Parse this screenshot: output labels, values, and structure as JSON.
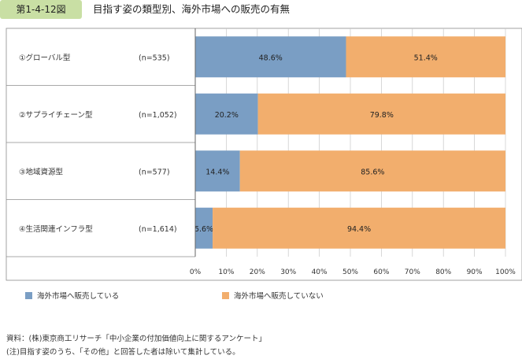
{
  "header": {
    "figure_number": "第1-4-12図",
    "title": "目指す姿の類型別、海外市場への販売の有無"
  },
  "colors": {
    "sell": "#7a9ec4",
    "not_sell": "#f2ae6d",
    "grid": "#c7c7c7",
    "border": "#8c8c8c"
  },
  "chart_data": {
    "type": "bar",
    "orientation": "horizontal",
    "stacked": true,
    "percent": true,
    "categories": [
      "①グローバル型",
      "②サプライチェーン型",
      "③地域資源型",
      "④生活関連インフラ型"
    ],
    "sample_sizes": [
      "(n=535)",
      "(n=1,052)",
      "(n=577)",
      "(n=1,614)"
    ],
    "series": [
      {
        "name": "海外市場へ販売している",
        "values": [
          48.6,
          20.2,
          14.4,
          5.6
        ],
        "labels": [
          "48.6%",
          "20.2%",
          "14.4%",
          "5.6%"
        ],
        "color": "#7a9ec4"
      },
      {
        "name": "海外市場へ販売していない",
        "values": [
          51.4,
          79.8,
          85.6,
          94.4
        ],
        "labels": [
          "51.4%",
          "79.8%",
          "85.6%",
          "94.4%"
        ],
        "color": "#f2ae6d"
      }
    ],
    "x_ticks": [
      0,
      10,
      20,
      30,
      40,
      50,
      60,
      70,
      80,
      90,
      100
    ],
    "x_tick_labels": [
      "0%",
      "10%",
      "20%",
      "30%",
      "40%",
      "50%",
      "60%",
      "70%",
      "80%",
      "90%",
      "100%"
    ],
    "xlim": [
      0,
      100
    ],
    "title": "目指す姿の類型別、海外市場への販売の有無",
    "legend_position": "bottom"
  },
  "legend": [
    {
      "label": "海外市場へ販売している"
    },
    {
      "label": "海外市場へ販売していない"
    }
  ],
  "notes": [
    "資料：(株)東京商工リサーチ「中小企業の付加価値向上に関するアンケート」",
    "(注)目指す姿のうち、「その他」と回答した者は除いて集計している。"
  ]
}
